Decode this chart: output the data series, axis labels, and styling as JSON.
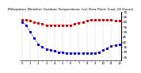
{
  "title": "Milwaukee Weather Outdoor Temperature (vs) Dew Point (Last 24 Hours)",
  "temp_color": "#cc0000",
  "dew_color": "#0000cc",
  "bg_color": "#ffffff",
  "grid_color": "#bbbbbb",
  "ylim": [
    22,
    70
  ],
  "ytick_values": [
    25,
    30,
    35,
    40,
    45,
    50,
    55,
    60,
    65,
    70
  ],
  "ytick_labels": [
    "25",
    "30",
    "35",
    "40",
    "45",
    "50",
    "55",
    "60",
    "65",
    "70"
  ],
  "temp_values": [
    62,
    62,
    61,
    60,
    59,
    58,
    57,
    57,
    57,
    57,
    57,
    57,
    57,
    58,
    59,
    60,
    61,
    62,
    62,
    62,
    62,
    62,
    62,
    61,
    61
  ],
  "dew_values": [
    60,
    57,
    50,
    44,
    38,
    35,
    33,
    32,
    31,
    30,
    30,
    29,
    29,
    29,
    29,
    29,
    29,
    29,
    29,
    30,
    32,
    34,
    36,
    37,
    38
  ],
  "n_points": 25,
  "title_fontsize": 3.2,
  "axis_fontsize": 3.0,
  "xtick_fontsize": 2.8,
  "marker_size": 1.2,
  "linewidth": 0.4,
  "vgrid_count": 13,
  "xtick_labels": [
    "0",
    "",
    "1",
    "",
    "2",
    "",
    "3",
    "",
    "4",
    "",
    "5",
    "",
    "6",
    "",
    "7",
    "",
    "8",
    "",
    "9",
    "",
    "10",
    "",
    "11",
    "",
    "12",
    ""
  ]
}
